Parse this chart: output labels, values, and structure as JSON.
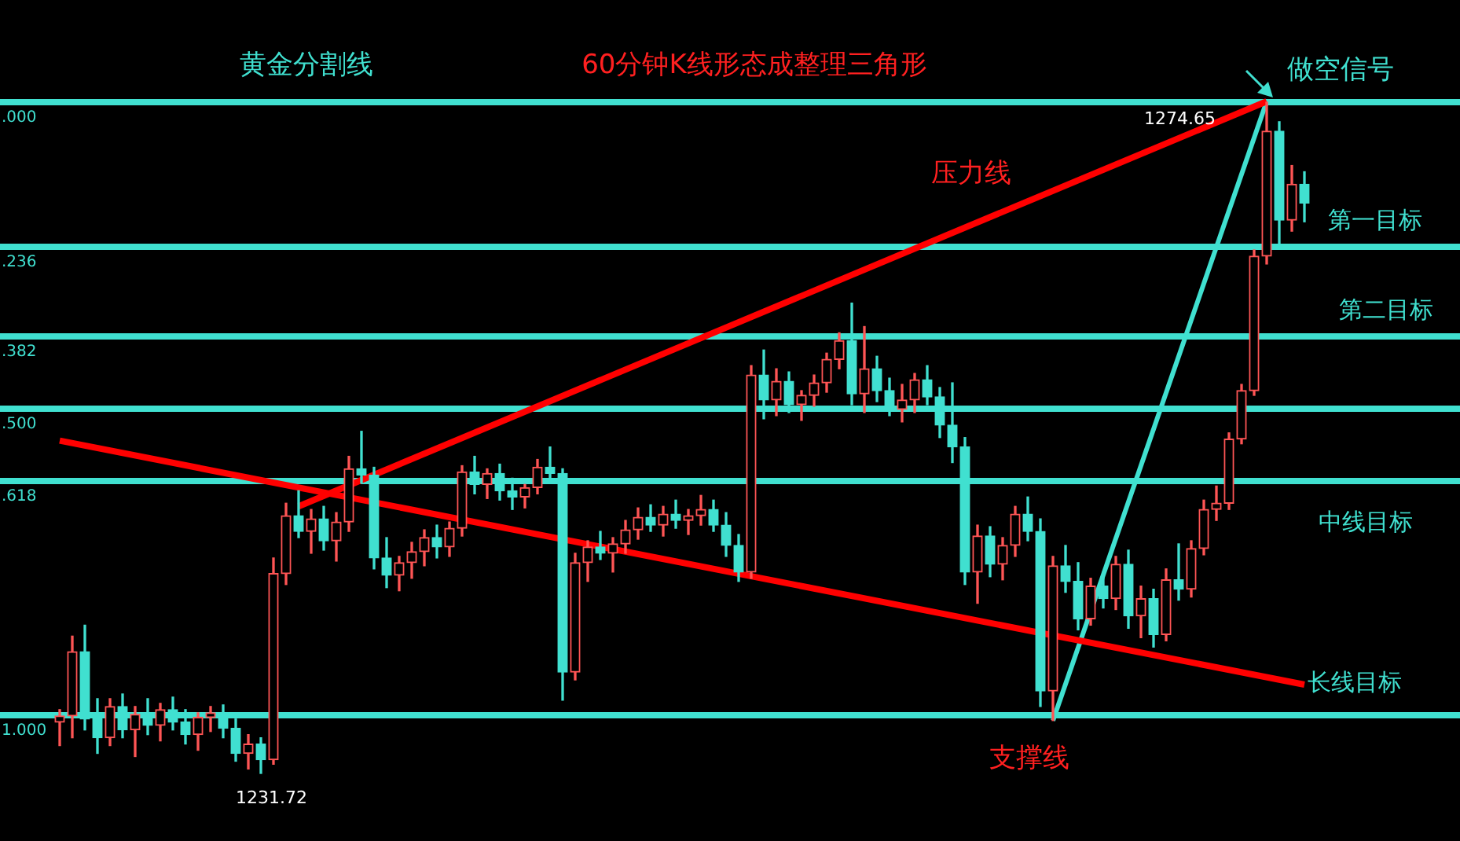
{
  "chart_data": {
    "type": "candlestick",
    "title": "60分钟K线形态成整理三角形",
    "categories": [
      null,
      null,
      null,
      null,
      null,
      null,
      null,
      null,
      null,
      null,
      null,
      null,
      null,
      null,
      null,
      null,
      null,
      null,
      null,
      null,
      null,
      null,
      null,
      null,
      null,
      null,
      null,
      null,
      null,
      null,
      null,
      null,
      null,
      null,
      null,
      null,
      null,
      null,
      null,
      null,
      null,
      null,
      null,
      null,
      null,
      null,
      null,
      null,
      null,
      null,
      null,
      null,
      null,
      null,
      null,
      null,
      null,
      null,
      null,
      null,
      null,
      null,
      null,
      null,
      null,
      null,
      null,
      null,
      null,
      null,
      null,
      null,
      null,
      null,
      null,
      null,
      null,
      null,
      null,
      null,
      null,
      null,
      null,
      null,
      null,
      null,
      null,
      null,
      null,
      null,
      null,
      null,
      null,
      null,
      null,
      null,
      null,
      null,
      null,
      null
    ],
    "ohlc": [
      [
        1235.0,
        1235.8,
        1233.5,
        1235.4
      ],
      [
        1235.4,
        1240.5,
        1234.0,
        1239.5
      ],
      [
        1239.5,
        1241.2,
        1234.5,
        1235.2
      ],
      [
        1235.2,
        1236.5,
        1233.0,
        1234.0
      ],
      [
        1234.0,
        1236.5,
        1233.5,
        1236.0
      ],
      [
        1236.0,
        1236.8,
        1234.0,
        1234.5
      ],
      [
        1234.5,
        1236.0,
        1232.8,
        1235.5
      ],
      [
        1235.5,
        1236.5,
        1234.2,
        1234.8
      ],
      [
        1234.8,
        1236.2,
        1233.8,
        1235.8
      ],
      [
        1235.8,
        1236.6,
        1234.5,
        1235.0
      ],
      [
        1235.0,
        1235.8,
        1233.6,
        1234.2
      ],
      [
        1234.2,
        1235.6,
        1233.2,
        1235.3
      ],
      [
        1235.3,
        1236.0,
        1234.4,
        1235.6
      ],
      [
        1235.6,
        1236.1,
        1234.0,
        1234.6
      ],
      [
        1234.6,
        1235.2,
        1232.5,
        1233.0
      ],
      [
        1233.0,
        1234.2,
        1232.0,
        1233.6
      ],
      [
        1233.6,
        1234.0,
        1231.72,
        1232.6
      ],
      [
        1232.6,
        1245.5,
        1232.3,
        1244.5
      ],
      [
        1244.5,
        1249.0,
        1243.8,
        1248.2
      ],
      [
        1248.2,
        1249.8,
        1246.8,
        1247.2
      ],
      [
        1247.2,
        1248.6,
        1245.8,
        1248.0
      ],
      [
        1248.0,
        1248.8,
        1246.0,
        1246.6
      ],
      [
        1246.6,
        1248.4,
        1245.3,
        1247.8
      ],
      [
        1247.8,
        1252.0,
        1247.2,
        1251.2
      ],
      [
        1251.2,
        1253.6,
        1250.3,
        1250.8
      ],
      [
        1250.8,
        1251.3,
        1244.8,
        1245.5
      ],
      [
        1245.5,
        1246.8,
        1243.6,
        1244.4
      ],
      [
        1244.4,
        1245.6,
        1243.4,
        1245.2
      ],
      [
        1245.2,
        1246.5,
        1244.2,
        1245.9
      ],
      [
        1245.9,
        1247.3,
        1245.0,
        1246.8
      ],
      [
        1246.8,
        1247.6,
        1245.5,
        1246.2
      ],
      [
        1246.2,
        1247.8,
        1245.6,
        1247.4
      ],
      [
        1247.4,
        1251.4,
        1246.9,
        1251.0
      ],
      [
        1251.0,
        1252.0,
        1249.6,
        1250.2
      ],
      [
        1250.2,
        1251.2,
        1249.3,
        1250.9
      ],
      [
        1250.9,
        1251.5,
        1249.2,
        1249.8
      ],
      [
        1249.8,
        1250.6,
        1248.6,
        1249.4
      ],
      [
        1249.4,
        1250.2,
        1248.7,
        1250.0
      ],
      [
        1250.0,
        1251.8,
        1249.6,
        1251.3
      ],
      [
        1251.3,
        1252.6,
        1250.6,
        1250.9
      ],
      [
        1250.9,
        1251.2,
        1236.4,
        1238.2
      ],
      [
        1238.2,
        1245.8,
        1237.7,
        1245.2
      ],
      [
        1245.2,
        1246.6,
        1244.0,
        1246.2
      ],
      [
        1246.2,
        1247.2,
        1245.4,
        1245.8
      ],
      [
        1245.8,
        1246.8,
        1244.6,
        1246.4
      ],
      [
        1246.4,
        1247.9,
        1245.8,
        1247.3
      ],
      [
        1247.3,
        1248.7,
        1246.7,
        1248.1
      ],
      [
        1248.1,
        1248.9,
        1247.2,
        1247.6
      ],
      [
        1247.6,
        1248.8,
        1246.9,
        1248.3
      ],
      [
        1248.3,
        1249.2,
        1247.4,
        1247.9
      ],
      [
        1247.9,
        1248.6,
        1247.0,
        1248.2
      ],
      [
        1248.2,
        1249.5,
        1247.6,
        1248.6
      ],
      [
        1248.6,
        1249.2,
        1247.2,
        1247.6
      ],
      [
        1247.6,
        1248.4,
        1245.6,
        1246.3
      ],
      [
        1246.3,
        1247.0,
        1244.0,
        1244.6
      ],
      [
        1244.6,
        1257.8,
        1244.2,
        1257.2
      ],
      [
        1257.2,
        1258.8,
        1254.4,
        1255.6
      ],
      [
        1255.6,
        1257.6,
        1254.6,
        1256.8
      ],
      [
        1256.8,
        1257.4,
        1254.8,
        1255.3
      ],
      [
        1255.3,
        1256.2,
        1254.3,
        1255.9
      ],
      [
        1255.9,
        1257.2,
        1255.2,
        1256.7
      ],
      [
        1256.7,
        1258.6,
        1256.1,
        1258.2
      ],
      [
        1258.2,
        1259.9,
        1257.6,
        1259.4
      ],
      [
        1259.4,
        1261.8,
        1255.3,
        1256.0
      ],
      [
        1256.0,
        1260.3,
        1254.8,
        1257.6
      ],
      [
        1257.6,
        1258.4,
        1255.5,
        1256.2
      ],
      [
        1256.2,
        1257.0,
        1254.6,
        1255.0
      ],
      [
        1255.0,
        1256.6,
        1254.2,
        1255.6
      ],
      [
        1255.6,
        1257.3,
        1254.8,
        1256.9
      ],
      [
        1256.9,
        1257.8,
        1255.3,
        1255.8
      ],
      [
        1255.8,
        1256.4,
        1253.2,
        1254.0
      ],
      [
        1254.0,
        1256.7,
        1251.6,
        1252.6
      ],
      [
        1252.6,
        1253.2,
        1243.8,
        1244.6
      ],
      [
        1244.6,
        1247.6,
        1242.6,
        1246.9
      ],
      [
        1246.9,
        1247.5,
        1244.3,
        1245.1
      ],
      [
        1245.1,
        1246.8,
        1244.1,
        1246.3
      ],
      [
        1246.3,
        1248.8,
        1245.6,
        1248.3
      ],
      [
        1248.3,
        1249.4,
        1246.6,
        1247.2
      ],
      [
        1247.2,
        1248.0,
        1236.0,
        1237.0
      ],
      [
        1237.0,
        1245.6,
        1235.1,
        1245.0
      ],
      [
        1245.0,
        1246.3,
        1243.3,
        1244.0
      ],
      [
        1244.0,
        1245.2,
        1240.9,
        1241.6
      ],
      [
        1241.6,
        1244.2,
        1241.2,
        1243.7
      ],
      [
        1243.7,
        1244.6,
        1242.3,
        1242.9
      ],
      [
        1242.9,
        1245.6,
        1242.2,
        1245.1
      ],
      [
        1245.1,
        1246.0,
        1241.0,
        1241.8
      ],
      [
        1241.8,
        1243.7,
        1240.4,
        1242.9
      ],
      [
        1242.9,
        1243.5,
        1239.8,
        1240.6
      ],
      [
        1240.6,
        1244.8,
        1240.2,
        1244.1
      ],
      [
        1244.1,
        1246.4,
        1242.8,
        1243.5
      ],
      [
        1243.5,
        1246.6,
        1243.0,
        1246.1
      ],
      [
        1246.1,
        1249.2,
        1245.7,
        1248.6
      ],
      [
        1248.6,
        1250.1,
        1247.9,
        1249.0
      ],
      [
        1249.0,
        1253.5,
        1248.6,
        1253.1
      ],
      [
        1253.1,
        1256.6,
        1252.8,
        1256.2
      ],
      [
        1256.2,
        1265.2,
        1255.9,
        1264.8
      ],
      [
        1264.8,
        1274.65,
        1264.3,
        1272.8
      ],
      [
        1272.8,
        1273.4,
        1265.6,
        1267.1
      ],
      [
        1267.1,
        1270.6,
        1266.4,
        1269.4
      ],
      [
        1269.4,
        1270.2,
        1267.0,
        1268.2
      ]
    ],
    "series": [
      {
        "type": "line",
        "color": "#ff0000",
        "values": [
          1253.0,
          null,
          null,
          null,
          null,
          null,
          null,
          null,
          null,
          null,
          null,
          null,
          null,
          null,
          null,
          null,
          null,
          null,
          null,
          null,
          null,
          null,
          null,
          null,
          null,
          null,
          null,
          null,
          null,
          null,
          null,
          null,
          null,
          null,
          null,
          null,
          null,
          null,
          null,
          null,
          null,
          null,
          null,
          null,
          null,
          null,
          null,
          null,
          null,
          null,
          null,
          null,
          null,
          null,
          null,
          null,
          null,
          null,
          null,
          null,
          null,
          null,
          null,
          null,
          null,
          null,
          null,
          null,
          null,
          null,
          null,
          null,
          null,
          null,
          null,
          null,
          null,
          null,
          null,
          null,
          null,
          null,
          null,
          null,
          null,
          null,
          null,
          null,
          null,
          null,
          null,
          null,
          null,
          null,
          null,
          null,
          null,
          null,
          null,
          1237.4
        ]
      },
      {
        "type": "line",
        "color": "#ff0000",
        "values": [
          null,
          null,
          null,
          null,
          null,
          null,
          null,
          null,
          null,
          null,
          null,
          null,
          null,
          null,
          null,
          null,
          null,
          null,
          null,
          1248.8,
          null,
          null,
          null,
          null,
          null,
          null,
          null,
          null,
          null,
          null,
          null,
          null,
          null,
          null,
          null,
          null,
          null,
          null,
          null,
          null,
          null,
          null,
          null,
          null,
          null,
          null,
          null,
          null,
          null,
          null,
          null,
          null,
          null,
          null,
          null,
          null,
          null,
          null,
          null,
          null,
          null,
          null,
          null,
          null,
          null,
          null,
          null,
          null,
          null,
          null,
          null,
          null,
          null,
          null,
          null,
          null,
          null,
          null,
          null,
          null,
          null,
          null,
          null,
          null,
          null,
          null,
          null,
          null,
          null,
          null,
          null,
          null,
          null,
          null,
          null,
          null,
          1274.7,
          null,
          null,
          null
        ]
      },
      {
        "type": "line",
        "color": "#40e0d0",
        "values": [
          null,
          null,
          null,
          null,
          null,
          null,
          null,
          null,
          null,
          null,
          null,
          null,
          null,
          null,
          null,
          null,
          null,
          null,
          null,
          null,
          null,
          null,
          null,
          null,
          null,
          null,
          null,
          null,
          null,
          null,
          null,
          null,
          null,
          null,
          null,
          null,
          null,
          null,
          null,
          null,
          null,
          null,
          null,
          null,
          null,
          null,
          null,
          null,
          null,
          null,
          null,
          null,
          null,
          null,
          null,
          null,
          null,
          null,
          null,
          null,
          null,
          null,
          null,
          null,
          null,
          null,
          null,
          null,
          null,
          null,
          null,
          null,
          null,
          null,
          null,
          null,
          null,
          null,
          null,
          1235.1,
          null,
          null,
          null,
          null,
          null,
          null,
          null,
          null,
          null,
          null,
          null,
          null,
          null,
          null,
          null,
          null,
          1274.7,
          null,
          null,
          null
        ]
      }
    ],
    "ref_lines": [
      {
        "axis": "y",
        "value": 1274.65,
        "color": "#40e0d0"
      },
      {
        "axis": "y",
        "value": 1265.4,
        "color": "#40e0d0"
      },
      {
        "axis": "y",
        "value": 1259.67,
        "color": "#40e0d0"
      },
      {
        "axis": "y",
        "value": 1255.04,
        "color": "#40e0d0"
      },
      {
        "axis": "y",
        "value": 1250.42,
        "color": "#40e0d0"
      },
      {
        "axis": "y",
        "value": 1235.44,
        "color": "#40e0d0"
      }
    ],
    "annotations": [
      "黄金分割线",
      "压力线",
      "做空信号",
      "第一目标",
      "第二目标",
      "中线目标",
      "长线目标",
      "支撑线",
      "1274.65",
      "1231.72",
      ".000",
      ".236",
      ".382",
      ".500",
      ".618",
      "1.000"
    ]
  }
}
